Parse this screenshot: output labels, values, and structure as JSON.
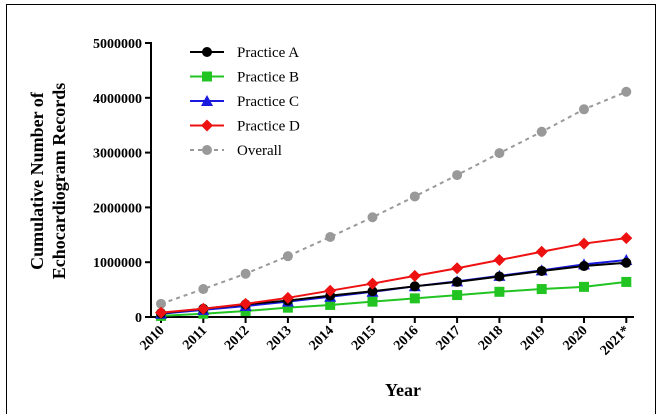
{
  "chart_data": {
    "type": "line",
    "title": "",
    "xlabel": "Year",
    "ylabel_lines": [
      "Cumulative Number of",
      "Echocardiogram Records"
    ],
    "categories": [
      "2010",
      "2011",
      "2012",
      "2013",
      "2014",
      "2015",
      "2016",
      "2017",
      "2018",
      "2019",
      "2020",
      "2021*"
    ],
    "yticks": [
      "0",
      "1000000",
      "2000000",
      "3000000",
      "4000000",
      "5000000"
    ],
    "ylim": [
      0,
      5000000
    ],
    "legend_position": "top-left",
    "grid": false,
    "series": [
      {
        "name": "Practice A",
        "color": "#000000",
        "marker": "circle",
        "dash": "none",
        "values": [
          70000,
          150000,
          230000,
          300000,
          390000,
          470000,
          560000,
          640000,
          740000,
          840000,
          930000,
          990000
        ]
      },
      {
        "name": "Practice B",
        "color": "#22c422",
        "marker": "square",
        "dash": "none",
        "values": [
          20000,
          60000,
          110000,
          170000,
          220000,
          280000,
          340000,
          400000,
          460000,
          510000,
          550000,
          640000
        ]
      },
      {
        "name": "Practice C",
        "color": "#1a1adf",
        "marker": "triangle",
        "dash": "none",
        "values": [
          60000,
          130000,
          200000,
          280000,
          370000,
          460000,
          560000,
          650000,
          750000,
          850000,
          960000,
          1040000
        ]
      },
      {
        "name": "Practice D",
        "color": "#ee1111",
        "marker": "diamond",
        "dash": "none",
        "values": [
          80000,
          150000,
          240000,
          350000,
          480000,
          610000,
          750000,
          890000,
          1040000,
          1190000,
          1340000,
          1440000
        ]
      },
      {
        "name": "Overall",
        "color": "#999999",
        "marker": "circle",
        "dash": "dashed",
        "values": [
          240000,
          510000,
          790000,
          1110000,
          1460000,
          1820000,
          2200000,
          2590000,
          2990000,
          3380000,
          3790000,
          4110000
        ]
      }
    ]
  }
}
